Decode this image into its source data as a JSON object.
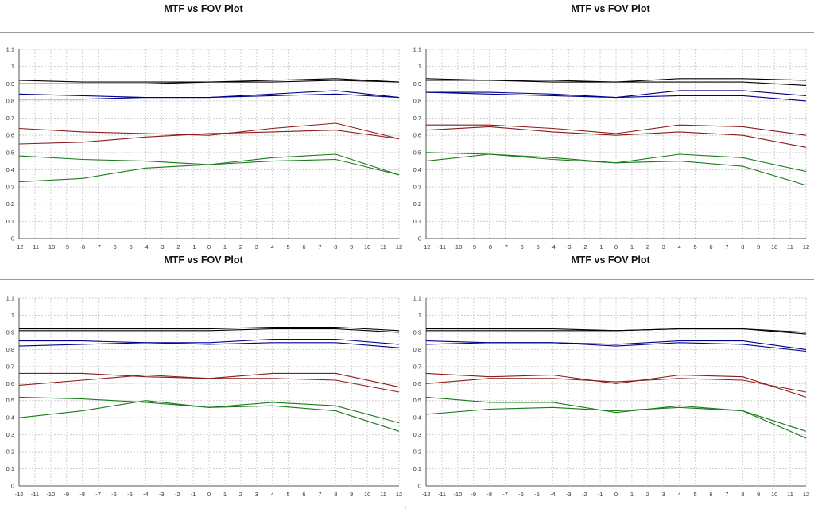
{
  "colors": {
    "black": "#000000",
    "blue": "#00008b",
    "red": "#8b1a1a",
    "green": "#1a7a1a",
    "grid": "#cfcfcf"
  },
  "chart_data": [
    {
      "type": "line",
      "title": "MTF vs FOV Plot",
      "xlabel": "",
      "ylabel": "",
      "xlim": [
        -12,
        12
      ],
      "ylim": [
        0,
        1.1
      ],
      "yticks": [
        "0",
        "0.1",
        "0.2",
        "0.3",
        "0.4",
        "0.5",
        "0.6",
        "0.7",
        "0.8",
        "0.9",
        "1",
        "1.1"
      ],
      "xticks": [
        "-12",
        "-11",
        "-10",
        "-9",
        "-8",
        "-7",
        "-6",
        "-5",
        "-4",
        "-3",
        "-2",
        "-1",
        "0",
        "1",
        "2",
        "3",
        "4",
        "5",
        "6",
        "7",
        "8",
        "9",
        "10",
        "11",
        "12"
      ],
      "grid": true,
      "x": [
        -12,
        -8,
        -4,
        0,
        4,
        8,
        12
      ],
      "series": [
        {
          "color": "black",
          "values": [
            0.92,
            0.91,
            0.91,
            0.91,
            0.92,
            0.93,
            0.91
          ]
        },
        {
          "color": "black",
          "values": [
            0.9,
            0.9,
            0.9,
            0.91,
            0.91,
            0.92,
            0.91
          ]
        },
        {
          "color": "blue",
          "values": [
            0.84,
            0.83,
            0.82,
            0.82,
            0.84,
            0.86,
            0.82
          ]
        },
        {
          "color": "blue",
          "values": [
            0.81,
            0.81,
            0.82,
            0.82,
            0.83,
            0.84,
            0.82
          ]
        },
        {
          "color": "red",
          "values": [
            0.64,
            0.62,
            0.61,
            0.6,
            0.64,
            0.67,
            0.58
          ]
        },
        {
          "color": "red",
          "values": [
            0.55,
            0.56,
            0.59,
            0.61,
            0.62,
            0.63,
            0.58
          ]
        },
        {
          "color": "green",
          "values": [
            0.48,
            0.46,
            0.45,
            0.43,
            0.47,
            0.49,
            0.37
          ]
        },
        {
          "color": "green",
          "values": [
            0.33,
            0.35,
            0.41,
            0.43,
            0.45,
            0.46,
            0.37
          ]
        }
      ]
    },
    {
      "type": "line",
      "title": "MTF vs FOV Plot",
      "xlabel": "",
      "ylabel": "",
      "xlim": [
        -12,
        12
      ],
      "ylim": [
        0,
        1.1
      ],
      "yticks": [
        "0",
        "0.1",
        "0.2",
        "0.3",
        "0.4",
        "0.5",
        "0.6",
        "0.7",
        "0.8",
        "0.9",
        "1",
        "1.1"
      ],
      "xticks": [
        "-12",
        "-11",
        "-10",
        "-9",
        "-8",
        "-7",
        "-6",
        "-5",
        "-4",
        "-3",
        "-2",
        "-1",
        "0",
        "1",
        "2",
        "3",
        "4",
        "5",
        "6",
        "7",
        "8",
        "9",
        "10",
        "11",
        "12"
      ],
      "grid": true,
      "x": [
        -12,
        -8,
        -4,
        0,
        4,
        8,
        12
      ],
      "series": [
        {
          "color": "black",
          "values": [
            0.93,
            0.92,
            0.92,
            0.91,
            0.93,
            0.93,
            0.92
          ]
        },
        {
          "color": "black",
          "values": [
            0.92,
            0.92,
            0.91,
            0.91,
            0.91,
            0.91,
            0.89
          ]
        },
        {
          "color": "blue",
          "values": [
            0.85,
            0.85,
            0.84,
            0.82,
            0.86,
            0.86,
            0.83
          ]
        },
        {
          "color": "blue",
          "values": [
            0.85,
            0.84,
            0.83,
            0.82,
            0.83,
            0.83,
            0.8
          ]
        },
        {
          "color": "red",
          "values": [
            0.66,
            0.66,
            0.64,
            0.61,
            0.66,
            0.65,
            0.6
          ]
        },
        {
          "color": "red",
          "values": [
            0.63,
            0.65,
            0.62,
            0.6,
            0.62,
            0.6,
            0.53
          ]
        },
        {
          "color": "green",
          "values": [
            0.5,
            0.49,
            0.47,
            0.44,
            0.49,
            0.47,
            0.39
          ]
        },
        {
          "color": "green",
          "values": [
            0.45,
            0.49,
            0.46,
            0.44,
            0.45,
            0.42,
            0.31
          ]
        }
      ]
    },
    {
      "type": "line",
      "title": "MTF vs FOV Plot",
      "xlabel": "",
      "ylabel": "",
      "xlim": [
        -12,
        12
      ],
      "ylim": [
        0,
        1.1
      ],
      "yticks": [
        "0",
        "0.1",
        "0.2",
        "0.3",
        "0.4",
        "0.5",
        "0.6",
        "0.7",
        "0.8",
        "0.9",
        "1",
        "1.1"
      ],
      "xticks": [
        "-12",
        "-11",
        "-10",
        "-9",
        "-8",
        "-7",
        "-6",
        "-5",
        "-4",
        "-3",
        "-2",
        "-1",
        "0",
        "1",
        "2",
        "3",
        "4",
        "5",
        "6",
        "7",
        "8",
        "9",
        "10",
        "11",
        "12"
      ],
      "grid": true,
      "x": [
        -12,
        -8,
        -4,
        0,
        4,
        8,
        12
      ],
      "series": [
        {
          "color": "black",
          "values": [
            0.92,
            0.92,
            0.92,
            0.92,
            0.93,
            0.93,
            0.91
          ]
        },
        {
          "color": "black",
          "values": [
            0.91,
            0.91,
            0.91,
            0.91,
            0.92,
            0.92,
            0.9
          ]
        },
        {
          "color": "blue",
          "values": [
            0.85,
            0.85,
            0.84,
            0.84,
            0.86,
            0.86,
            0.83
          ]
        },
        {
          "color": "blue",
          "values": [
            0.82,
            0.83,
            0.84,
            0.83,
            0.84,
            0.84,
            0.81
          ]
        },
        {
          "color": "red",
          "values": [
            0.66,
            0.66,
            0.64,
            0.63,
            0.66,
            0.66,
            0.58
          ]
        },
        {
          "color": "red",
          "values": [
            0.59,
            0.62,
            0.65,
            0.63,
            0.63,
            0.62,
            0.55
          ]
        },
        {
          "color": "green",
          "values": [
            0.52,
            0.51,
            0.49,
            0.46,
            0.49,
            0.47,
            0.37
          ]
        },
        {
          "color": "green",
          "values": [
            0.4,
            0.44,
            0.5,
            0.46,
            0.47,
            0.44,
            0.32
          ]
        }
      ]
    },
    {
      "type": "line",
      "title": "MTF vs FOV Plot",
      "xlabel": "",
      "ylabel": "",
      "xlim": [
        -12,
        12
      ],
      "ylim": [
        0,
        1.1
      ],
      "yticks": [
        "0",
        "0.1",
        "0.2",
        "0.3",
        "0.4",
        "0.5",
        "0.6",
        "0.7",
        "0.8",
        "0.9",
        "1",
        "1.1"
      ],
      "xticks": [
        "-12",
        "-11",
        "-10",
        "-9",
        "-8",
        "-7",
        "-6",
        "-5",
        "-4",
        "-3",
        "-2",
        "-1",
        "0",
        "1",
        "2",
        "3",
        "4",
        "5",
        "6",
        "7",
        "8",
        "9",
        "10",
        "11",
        "12"
      ],
      "grid": true,
      "x": [
        -12,
        -8,
        -4,
        0,
        4,
        8,
        12
      ],
      "series": [
        {
          "color": "black",
          "values": [
            0.92,
            0.92,
            0.92,
            0.91,
            0.92,
            0.92,
            0.9
          ]
        },
        {
          "color": "black",
          "values": [
            0.91,
            0.91,
            0.91,
            0.91,
            0.92,
            0.92,
            0.89
          ]
        },
        {
          "color": "blue",
          "values": [
            0.85,
            0.84,
            0.84,
            0.83,
            0.85,
            0.85,
            0.8
          ]
        },
        {
          "color": "blue",
          "values": [
            0.83,
            0.84,
            0.84,
            0.82,
            0.84,
            0.83,
            0.79
          ]
        },
        {
          "color": "red",
          "values": [
            0.66,
            0.64,
            0.65,
            0.6,
            0.65,
            0.64,
            0.52
          ]
        },
        {
          "color": "red",
          "values": [
            0.6,
            0.63,
            0.63,
            0.61,
            0.63,
            0.62,
            0.55
          ]
        },
        {
          "color": "green",
          "values": [
            0.52,
            0.49,
            0.49,
            0.43,
            0.47,
            0.44,
            0.28
          ]
        },
        {
          "color": "green",
          "values": [
            0.42,
            0.45,
            0.46,
            0.44,
            0.46,
            0.44,
            0.32
          ]
        }
      ]
    }
  ]
}
